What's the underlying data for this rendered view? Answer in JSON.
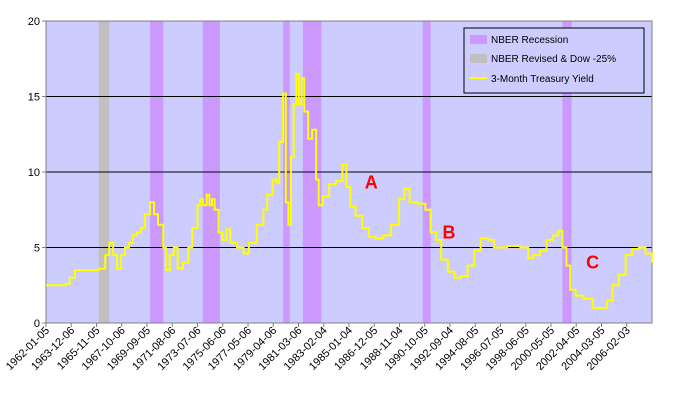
{
  "chart_data": {
    "type": "line",
    "title": "",
    "xlabel": "",
    "ylabel": "",
    "ylim": [
      0,
      20
    ],
    "y_ticks": [
      "0",
      "5",
      "10",
      "15",
      "20"
    ],
    "x_ticks": [
      "1962-01-05",
      "1963-12-06",
      "1965-11-05",
      "1967-10-06",
      "1969-09-05",
      "1971-08-06",
      "1973-07-06",
      "1975-06-06",
      "1977-05-06",
      "1979-04-06",
      "1981-03-06",
      "1983-02-04",
      "1985-01-04",
      "1986-12-05",
      "1988-11-04",
      "1990-10-05",
      "1992-09-04",
      "1994-08-05",
      "1996-07-05",
      "1998-06-05",
      "2000-05-05",
      "2002-04-05",
      "2004-03-05",
      "2006-02-03"
    ],
    "xlim": [
      1962.0,
      2008.0
    ],
    "plot_background": "#ccccff",
    "gridlines": "horizontal",
    "legend": {
      "placement": "top-right",
      "items": [
        {
          "label": "NBER Recession",
          "color": "#cc99ff",
          "kind": "box"
        },
        {
          "label": "NBER Revised & Dow -25%",
          "color": "#c0c0c0",
          "kind": "box"
        },
        {
          "label": "3-Month Treasury Yield",
          "color": "#ffff00",
          "kind": "line"
        }
      ]
    },
    "recessions": [
      {
        "start": 1969.9,
        "end": 1970.9
      },
      {
        "start": 1973.9,
        "end": 1975.2
      },
      {
        "start": 1980.0,
        "end": 1980.5
      },
      {
        "start": 1981.5,
        "end": 1982.9
      },
      {
        "start": 1990.6,
        "end": 1991.2
      },
      {
        "start": 2001.2,
        "end": 2001.9
      }
    ],
    "revised_periods": [
      {
        "start": 1966.0,
        "end": 1966.8
      }
    ],
    "series": [
      {
        "name": "3-Month Treasury Yield",
        "color": "#ffff00",
        "x": [
          1962.0,
          1963.5,
          1963.8,
          1964.2,
          1966.0,
          1966.5,
          1966.8,
          1967.1,
          1967.4,
          1967.7,
          1968.0,
          1968.3,
          1968.6,
          1968.9,
          1969.2,
          1969.5,
          1969.9,
          1970.2,
          1970.5,
          1970.9,
          1971.1,
          1971.4,
          1971.7,
          1972.0,
          1972.4,
          1972.8,
          1973.1,
          1973.5,
          1973.7,
          1973.9,
          1974.2,
          1974.4,
          1974.6,
          1974.8,
          1975.1,
          1975.4,
          1975.7,
          1976.0,
          1976.5,
          1977.0,
          1977.4,
          1978.0,
          1978.5,
          1978.8,
          1979.2,
          1979.5,
          1979.7,
          1980.0,
          1980.2,
          1980.4,
          1980.6,
          1980.8,
          1981.0,
          1981.2,
          1981.4,
          1981.6,
          1981.9,
          1982.2,
          1982.5,
          1982.7,
          1983.0,
          1983.5,
          1984.0,
          1984.5,
          1984.8,
          1985.1,
          1985.5,
          1986.0,
          1986.5,
          1987.0,
          1987.6,
          1988.2,
          1988.8,
          1989.2,
          1989.6,
          1990.2,
          1990.8,
          1991.2,
          1991.6,
          1992.0,
          1992.5,
          1993.0,
          1993.5,
          1994.0,
          1994.5,
          1995.0,
          1995.6,
          1996.0,
          1997.0,
          1998.0,
          1998.6,
          1999.0,
          1999.5,
          2000.0,
          2000.5,
          2000.9,
          2001.2,
          2001.5,
          2001.8,
          2002.2,
          2002.8,
          2003.5,
          2004.0,
          2004.6,
          2005.0,
          2005.5,
          2006.0,
          2006.5,
          2007.0,
          2007.5,
          2008.0
        ],
        "y": [
          2.5,
          2.6,
          3.0,
          3.5,
          3.6,
          4.5,
          5.3,
          4.5,
          3.6,
          4.5,
          5.0,
          5.3,
          5.8,
          6.0,
          6.3,
          7.2,
          8.0,
          7.2,
          6.5,
          5.0,
          3.5,
          4.5,
          5.0,
          3.6,
          4.0,
          5.0,
          6.3,
          7.8,
          8.2,
          7.8,
          8.5,
          7.8,
          8.2,
          7.5,
          6.0,
          5.5,
          6.2,
          5.3,
          5.0,
          4.6,
          5.3,
          6.5,
          7.5,
          8.5,
          9.5,
          9.3,
          12.0,
          15.2,
          8.0,
          6.5,
          11.0,
          14.5,
          16.5,
          14.5,
          16.2,
          14.0,
          12.2,
          12.8,
          9.5,
          7.8,
          8.4,
          9.2,
          9.4,
          10.5,
          9.0,
          7.7,
          7.1,
          6.3,
          5.7,
          5.6,
          5.8,
          6.5,
          8.2,
          8.9,
          8.0,
          7.9,
          7.5,
          6.0,
          5.5,
          4.2,
          3.4,
          3.0,
          3.1,
          3.8,
          4.8,
          5.6,
          5.5,
          5.0,
          5.1,
          5.0,
          4.3,
          4.5,
          4.8,
          5.5,
          5.8,
          6.1,
          5.0,
          3.8,
          2.2,
          1.8,
          1.6,
          1.0,
          1.0,
          1.5,
          2.5,
          3.2,
          4.5,
          4.9,
          5.0,
          4.6,
          4.0
        ]
      }
    ],
    "annotations": [
      {
        "text": "A",
        "x": 1986.2,
        "y": 8.9
      },
      {
        "text": "B",
        "x": 1992.1,
        "y": 5.6
      },
      {
        "text": "C",
        "x": 2003.0,
        "y": 3.6
      }
    ]
  }
}
